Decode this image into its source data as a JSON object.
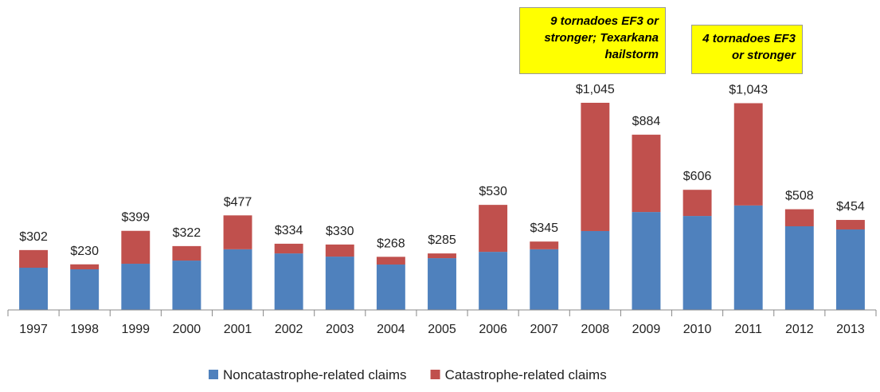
{
  "chart_data": {
    "type": "stacked_bar",
    "categories": [
      "1997",
      "1998",
      "1999",
      "2000",
      "2001",
      "2002",
      "2003",
      "2004",
      "2005",
      "2006",
      "2007",
      "2008",
      "2009",
      "2010",
      "2011",
      "2012",
      "2013"
    ],
    "series": [
      {
        "name": "Noncatastrophe-related claims",
        "color": "#4f81bd",
        "values": [
          213,
          205,
          233,
          249,
          306,
          285,
          269,
          229,
          261,
          293,
          306,
          398,
          494,
          474,
          527,
          422,
          406
        ]
      },
      {
        "name": "Catastrophe-related claims",
        "color": "#c0504d",
        "values": [
          89,
          25,
          166,
          73,
          171,
          49,
          61,
          39,
          24,
          237,
          39,
          647,
          390,
          132,
          516,
          86,
          48
        ]
      }
    ],
    "totals": [
      302,
      230,
      399,
      322,
      477,
      334,
      330,
      268,
      285,
      530,
      345,
      1045,
      884,
      606,
      1043,
      508,
      454
    ],
    "total_labels": [
      "$302",
      "$230",
      "$399",
      "$322",
      "$477",
      "$334",
      "$330",
      "$268",
      "$285",
      "$530",
      "$345",
      "$1,045",
      "$884",
      "$606",
      "$1,043",
      "$508",
      "$454"
    ],
    "annotations": [
      "9 tornadoes EF3 or stronger; Texarkana hailstorm",
      "4 tornadoes EF3 or stronger"
    ],
    "legend": "bottom"
  }
}
